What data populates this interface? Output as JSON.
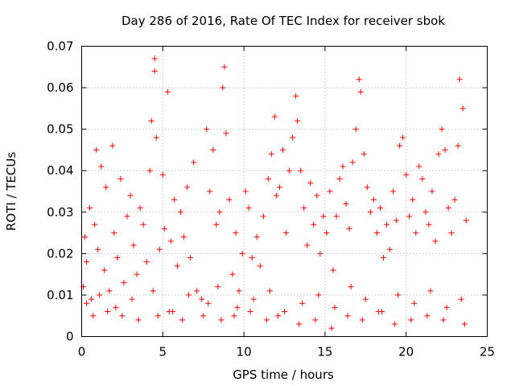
{
  "chart_data": {
    "type": "scatter",
    "title": "Day 286 of 2016, Rate Of TEC Index for receiver sbok",
    "xlabel": "GPS time / hours",
    "ylabel": "ROTI / TECUs",
    "xlim": [
      0,
      25
    ],
    "ylim": [
      0,
      0.07
    ],
    "xticks": [
      0,
      5,
      10,
      15,
      20,
      25
    ],
    "yticks": [
      0,
      0.01,
      0.02,
      0.03,
      0.04,
      0.05,
      0.06,
      0.07
    ],
    "xtick_labels": [
      "0",
      "5",
      "10",
      "15",
      "20",
      "25"
    ],
    "ytick_labels": [
      "0",
      "0.01",
      "0.02",
      "0.03",
      "0.04",
      "0.05",
      "0.06",
      "0.07"
    ],
    "grid": true,
    "marker": "+",
    "color": "#ff0000",
    "series": [
      {
        "name": "ROTI",
        "x": [
          0.1,
          0.2,
          0.3,
          0.5,
          0.6,
          0.8,
          0.9,
          1.0,
          1.2,
          1.4,
          1.5,
          1.7,
          1.9,
          2.0,
          2.2,
          2.4,
          2.6,
          2.8,
          3.0,
          3.2,
          3.4,
          3.6,
          3.8,
          4.0,
          4.2,
          4.3,
          4.5,
          4.5,
          4.6,
          4.8,
          5.0,
          5.1,
          5.3,
          5.5,
          5.7,
          5.9,
          6.1,
          6.3,
          6.5,
          6.7,
          6.9,
          7.1,
          7.4,
          7.7,
          7.9,
          8.1,
          8.3,
          8.5,
          8.7,
          8.8,
          8.9,
          9.1,
          9.3,
          9.5,
          9.7,
          9.9,
          10.1,
          10.3,
          10.5,
          10.8,
          11.0,
          11.2,
          11.5,
          11.7,
          11.9,
          12.0,
          12.2,
          12.4,
          12.6,
          12.8,
          13.0,
          13.2,
          13.3,
          13.5,
          13.7,
          13.9,
          14.1,
          14.3,
          14.5,
          14.7,
          14.9,
          15.1,
          15.3,
          15.5,
          15.7,
          15.9,
          16.1,
          16.3,
          16.5,
          16.7,
          16.9,
          17.1,
          17.2,
          17.4,
          17.6,
          17.8,
          18.0,
          18.2,
          18.4,
          18.6,
          18.8,
          19.0,
          19.2,
          19.4,
          19.6,
          19.8,
          20.0,
          20.2,
          20.4,
          20.6,
          20.8,
          21.0,
          21.2,
          21.4,
          21.6,
          21.8,
          22.0,
          22.2,
          22.4,
          22.6,
          22.8,
          23.0,
          23.2,
          23.3,
          23.5,
          23.7,
          0.3,
          1.1,
          2.1,
          3.1,
          4.4,
          5.6,
          6.6,
          7.8,
          8.4,
          9.6,
          10.6,
          11.6,
          12.5,
          13.6,
          14.6,
          15.6,
          16.6,
          17.5,
          18.5,
          19.5,
          20.5,
          21.5,
          22.5,
          23.4,
          0.7,
          1.6,
          2.5,
          3.5,
          4.7,
          5.4,
          6.2,
          7.5,
          8.6,
          9.4,
          10.4,
          11.4,
          12.1,
          13.4,
          14.4,
          15.4,
          16.4,
          17.3,
          18.3,
          19.3,
          20.3,
          21.3,
          22.3,
          23.6
        ],
        "y": [
          0.012,
          0.024,
          0.018,
          0.031,
          0.009,
          0.027,
          0.045,
          0.021,
          0.041,
          0.016,
          0.036,
          0.011,
          0.046,
          0.025,
          0.019,
          0.038,
          0.013,
          0.029,
          0.034,
          0.022,
          0.015,
          0.031,
          0.027,
          0.018,
          0.04,
          0.052,
          0.067,
          0.064,
          0.048,
          0.021,
          0.039,
          0.026,
          0.059,
          0.023,
          0.033,
          0.017,
          0.03,
          0.024,
          0.036,
          0.019,
          0.042,
          0.011,
          0.009,
          0.05,
          0.035,
          0.045,
          0.027,
          0.03,
          0.06,
          0.065,
          0.049,
          0.033,
          0.015,
          0.025,
          0.011,
          0.02,
          0.035,
          0.031,
          0.019,
          0.024,
          0.017,
          0.029,
          0.038,
          0.044,
          0.053,
          0.034,
          0.036,
          0.045,
          0.025,
          0.04,
          0.048,
          0.058,
          0.052,
          0.04,
          0.031,
          0.022,
          0.037,
          0.027,
          0.034,
          0.02,
          0.029,
          0.025,
          0.035,
          0.016,
          0.029,
          0.038,
          0.041,
          0.032,
          0.026,
          0.042,
          0.05,
          0.062,
          0.059,
          0.044,
          0.036,
          0.03,
          0.033,
          0.025,
          0.031,
          0.019,
          0.027,
          0.021,
          0.035,
          0.028,
          0.046,
          0.048,
          0.039,
          0.029,
          0.033,
          0.025,
          0.041,
          0.038,
          0.03,
          0.027,
          0.035,
          0.023,
          0.044,
          0.05,
          0.045,
          0.031,
          0.025,
          0.033,
          0.046,
          0.062,
          0.055,
          0.028,
          0.008,
          0.01,
          0.007,
          0.009,
          0.011,
          0.006,
          0.01,
          0.008,
          0.012,
          0.007,
          0.009,
          0.011,
          0.006,
          0.008,
          0.01,
          0.007,
          0.012,
          0.009,
          0.006,
          0.01,
          0.008,
          0.011,
          0.007,
          0.009,
          0.005,
          0.006,
          0.005,
          0.004,
          0.005,
          0.006,
          0.004,
          0.005,
          0.004,
          0.005,
          0.006,
          0.004,
          0.005,
          0.003,
          0.004,
          0.002,
          0.005,
          0.004,
          0.006,
          0.003,
          0.004,
          0.005,
          0.004,
          0.003
        ]
      }
    ]
  }
}
